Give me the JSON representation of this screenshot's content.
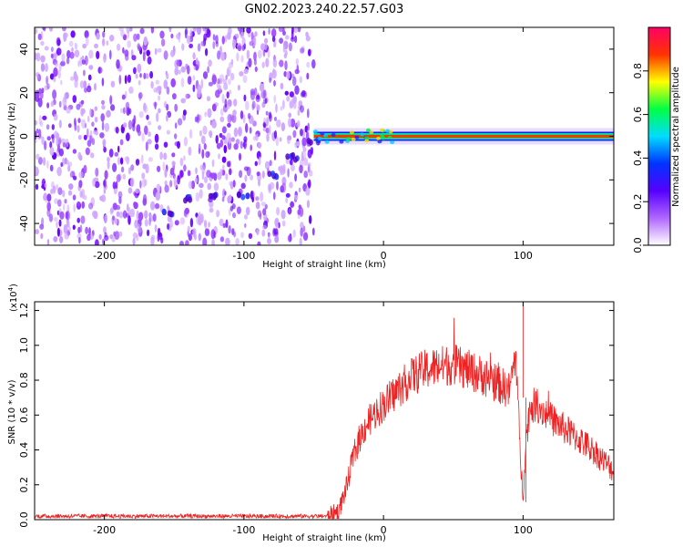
{
  "title": "GN02.2023.240.22.57.G03",
  "chart_data": [
    {
      "type": "heatmap",
      "xlabel": "Height of straight line (km)",
      "ylabel": "Frequency (Hz)",
      "xlim": [
        -250,
        165
      ],
      "ylim": [
        -50,
        50
      ],
      "xticks": [
        -200,
        -100,
        0,
        100
      ],
      "yticks": [
        -40,
        -20,
        0,
        20,
        40
      ],
      "colorbar": {
        "label": "Normalized spectral amplitude",
        "range": [
          0,
          1
        ],
        "ticks": [
          "0.0",
          "0.2",
          "0.4",
          "0.6",
          "0.8"
        ],
        "colors": [
          "#ffffff",
          "#b066ff",
          "#5500ff",
          "#0033ff",
          "#00ddff",
          "#00ff44",
          "#ffff00",
          "#ff3300",
          "#ff0066"
        ]
      },
      "features": {
        "noise_region_x": [
          -250,
          -50
        ],
        "carrier_line_x": [
          -50,
          165
        ],
        "carrier_freq": 0,
        "drift_track": [
          [
            -155,
            -35
          ],
          [
            -140,
            -29
          ],
          [
            -120,
            -28
          ],
          [
            -100,
            -27
          ],
          [
            -80,
            -18
          ],
          [
            -65,
            -10
          ],
          [
            -50,
            -3
          ]
        ]
      }
    },
    {
      "type": "line",
      "xlabel": "Height of straight line (km)",
      "ylabel": "SNR (10 * v/v)",
      "yscale_label": "(x10",
      "yscale_exp": "4",
      "yscale_close": ")",
      "xlim": [
        -250,
        165
      ],
      "ylim": [
        0,
        1.25
      ],
      "xticks": [
        -200,
        -100,
        0,
        100
      ],
      "yticks": [
        "0.0",
        "0.2",
        "0.4",
        "0.6",
        "0.8",
        "1.0",
        "1.2"
      ],
      "color": "#ee2222",
      "series": [
        {
          "x": [
            -250,
            -40,
            -32,
            -26,
            -22,
            -18,
            -12,
            -5,
            0,
            10,
            20,
            30,
            40,
            50,
            60,
            70,
            80,
            90,
            95,
            98,
            100,
            102,
            105,
            110,
            120,
            130,
            140,
            150,
            160,
            165
          ],
          "y": [
            0.02,
            0.02,
            0.05,
            0.2,
            0.35,
            0.45,
            0.55,
            0.62,
            0.66,
            0.74,
            0.82,
            0.86,
            0.88,
            0.89,
            0.86,
            0.83,
            0.79,
            0.74,
            0.95,
            0.35,
            0.15,
            0.45,
            0.65,
            0.66,
            0.58,
            0.52,
            0.46,
            0.4,
            0.32,
            0.28
          ]
        }
      ],
      "annotations": [
        {
          "x": 100,
          "y": 1.28,
          "note": "spike"
        },
        {
          "x": 102,
          "y": 0.1,
          "note": "dip"
        }
      ]
    }
  ]
}
